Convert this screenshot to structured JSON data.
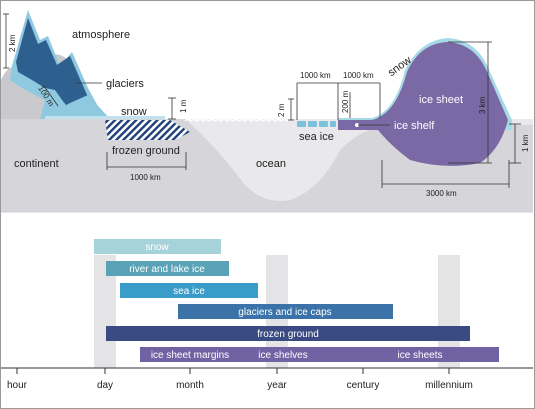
{
  "diagram": {
    "labels": {
      "atmosphere": "atmosphere",
      "glaciers": "glaciers",
      "snow_left": "snow",
      "snow_right": "snow",
      "frozen_ground": "frozen ground",
      "continent": "continent",
      "ocean": "ocean",
      "sea_ice": "sea ice",
      "ice_sheet": "ice sheet",
      "ice_shelf": "ice shelf"
    },
    "scales": {
      "mountain_height": "2 km",
      "glacier_depth": "100 m",
      "snow_depth": "1 m",
      "frozen_ground_width": "1000 km",
      "sea_ice_thickness": "2 m",
      "sea_ice_width": "1000 km",
      "shelf_thickness": "200 m",
      "shelf_width": "1000 km",
      "sheet_height": "3 km",
      "sheet_base": "1 km",
      "sheet_width": "3000 km"
    },
    "colors": {
      "sky": "#ffffff",
      "continent": "#dcdcdf",
      "ocean": "#ececef",
      "glacier_dark": "#2d5f8f",
      "glacier_light": "#8ec9e0",
      "ice_sheet": "#7a69a5",
      "sea_ice": "#7cc2dc",
      "frozen_ground": "#1e3f7a"
    }
  },
  "timeline": {
    "axis_ticks": [
      "hour",
      "day",
      "month",
      "year",
      "century",
      "millennium"
    ],
    "bars": [
      {
        "label": "snow",
        "color": "#a6d3da"
      },
      {
        "label": "river and lake ice",
        "color": "#5aa2b6"
      },
      {
        "label": "sea ice",
        "color": "#3a9cc8"
      },
      {
        "label": "glaciers and ice caps",
        "color": "#3b73a8"
      },
      {
        "label": "frozen ground",
        "color": "#3a4a82"
      },
      {
        "label": "ice sheet margins",
        "color": "#7163a3"
      },
      {
        "label": "ice shelves",
        "color": "#7163a3"
      },
      {
        "label": "ice sheets",
        "color": "#7163a3"
      }
    ]
  }
}
